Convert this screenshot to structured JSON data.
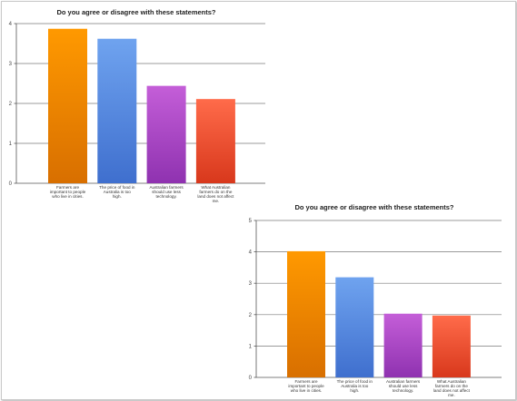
{
  "chart_data": [
    {
      "type": "bar",
      "title": "Do you agree or disagree with these statements?",
      "categories": [
        "Farmers are important to people who live in cities.",
        "The price of food in Australia is too high.",
        "Australian farmers should use less technology.",
        "What Australian farmers do on the land does not affect me."
      ],
      "values": [
        3.87,
        3.62,
        2.44,
        2.11
      ],
      "ylim": [
        0,
        4
      ],
      "yticks": [
        "0",
        "1",
        "2",
        "3",
        "4"
      ],
      "grid": true,
      "colors": [
        [
          "#ff9900",
          "#d86f00"
        ],
        [
          "#6fa3ef",
          "#3f6fce"
        ],
        [
          "#c45ed8",
          "#8f32b0"
        ],
        [
          "#ff6b4a",
          "#d8381c"
        ]
      ]
    },
    {
      "type": "bar",
      "title": "Do you agree or disagree with these statements?",
      "categories": [
        "Farmers are important to people who live in cities.",
        "The price of food in Australia is too high.",
        "Australian farmers should use less technology.",
        "What Australian farmers do on the land does not affect me."
      ],
      "values": [
        4.02,
        3.19,
        2.03,
        1.97
      ],
      "ylim": [
        0,
        5
      ],
      "yticks": [
        "0",
        "1",
        "2",
        "3",
        "4",
        "5"
      ],
      "grid": true,
      "colors": [
        [
          "#ff9900",
          "#d86f00"
        ],
        [
          "#6fa3ef",
          "#3f6fce"
        ],
        [
          "#c45ed8",
          "#8f32b0"
        ],
        [
          "#ff6b4a",
          "#d8381c"
        ]
      ]
    }
  ]
}
